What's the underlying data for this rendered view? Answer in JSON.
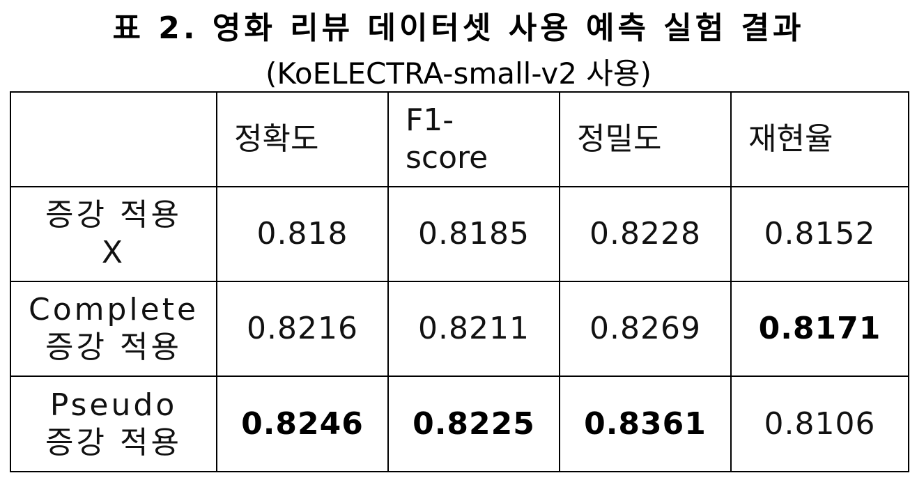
{
  "caption": {
    "line1": "표 2. 영화 리뷰 데이터셋 사용 예측 실험 결과",
    "line2": "(KoELECTRA-small-v2 사용)"
  },
  "table": {
    "headers": [
      "",
      "정확도",
      "F1-score",
      "정밀도",
      "재현율"
    ],
    "header_f1_parts": [
      "F1-",
      "score"
    ],
    "rows": [
      {
        "label_lines": [
          "증강 적용",
          "X"
        ],
        "values": [
          "0.818",
          "0.8185",
          "0.8228",
          "0.8152"
        ],
        "bold": [
          false,
          false,
          false,
          false
        ]
      },
      {
        "label_lines": [
          "Complete",
          "증강 적용"
        ],
        "values": [
          "0.8216",
          "0.8211",
          "0.8269",
          "0.8171"
        ],
        "bold": [
          false,
          false,
          false,
          true
        ]
      },
      {
        "label_lines": [
          "Pseudo",
          "증강 적용"
        ],
        "values": [
          "0.8246",
          "0.8225",
          "0.8361",
          "0.8106"
        ],
        "bold": [
          true,
          true,
          true,
          false
        ]
      }
    ]
  }
}
